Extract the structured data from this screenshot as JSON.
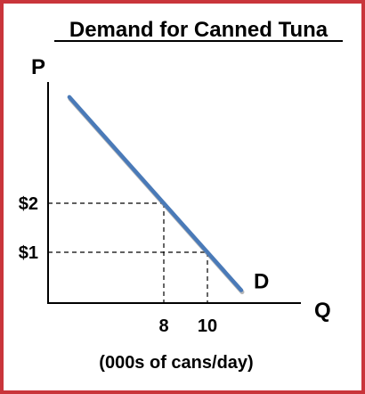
{
  "chart_data": {
    "type": "line",
    "title": "Demand for Canned Tuna",
    "ylabel": "P",
    "xlabel": "Q",
    "x_unit_note": "(000s of cans/day)",
    "series": [
      {
        "name": "D",
        "x": [
          8,
          10
        ],
        "y": [
          2,
          1
        ],
        "color": "#4a7ab8"
      }
    ],
    "x_ticks": [
      {
        "value": 8,
        "label": "8"
      },
      {
        "value": 10,
        "label": "10"
      }
    ],
    "y_ticks": [
      {
        "value": 2,
        "label": "$2"
      },
      {
        "value": 1,
        "label": "$1"
      }
    ],
    "reference_points": [
      {
        "x": 8,
        "y": 2
      },
      {
        "x": 10,
        "y": 1
      }
    ],
    "grid": false
  }
}
